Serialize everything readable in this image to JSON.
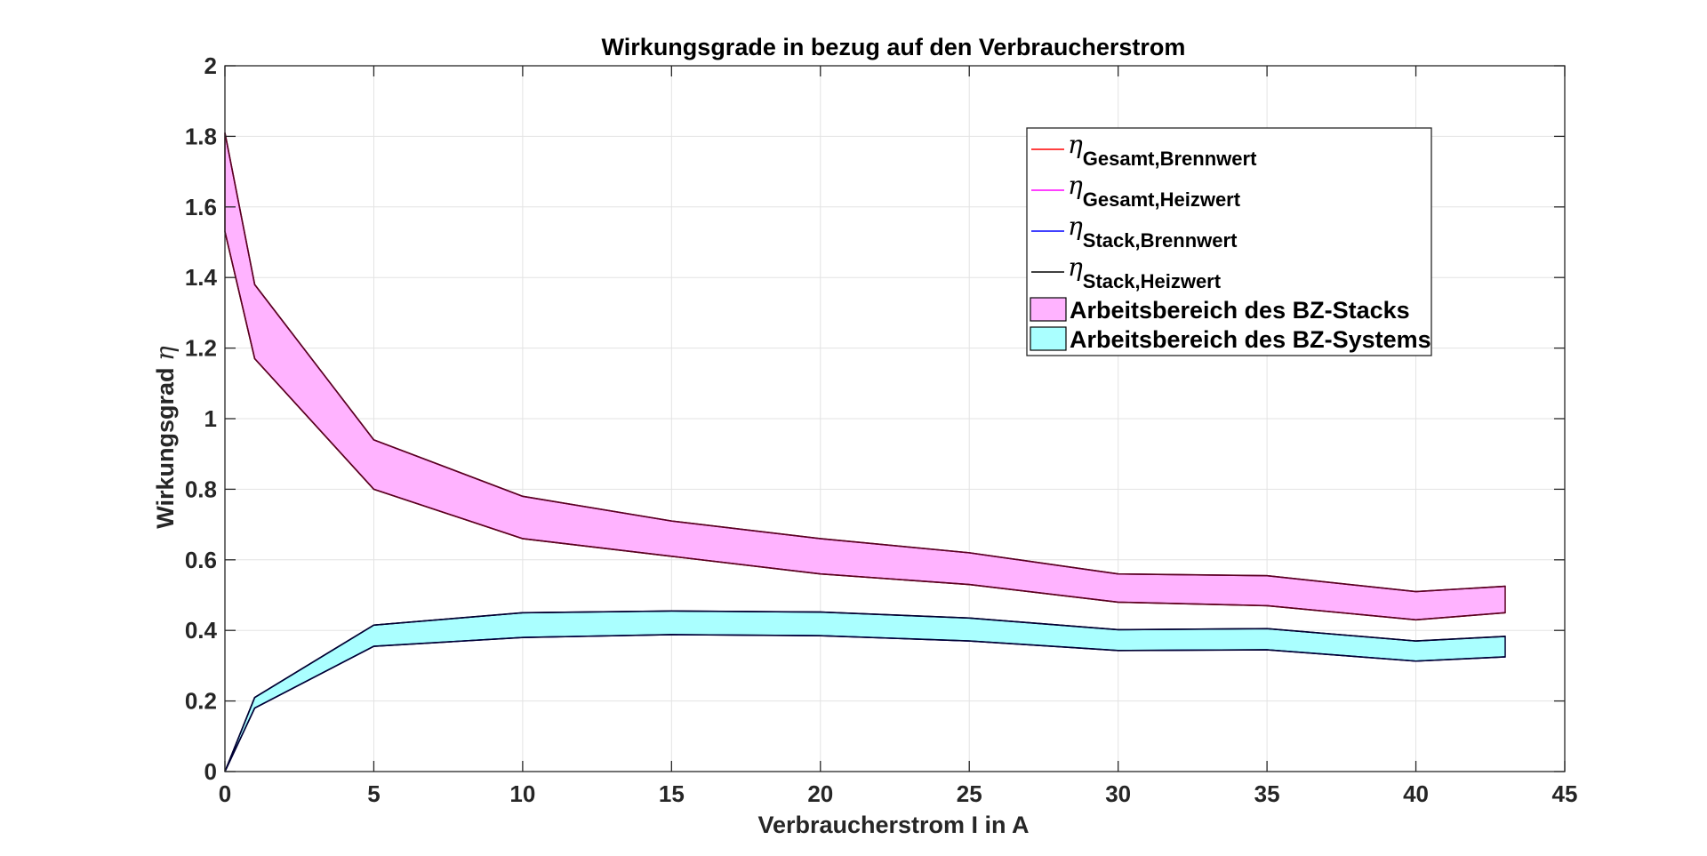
{
  "chart_data": {
    "type": "area",
    "title": "Wirkungsgrade in bezug auf den Verbraucherstrom",
    "xlabel": "Verbraucherstrom I in A",
    "ylabel_text": "Wirkungsgrad ",
    "ylabel_symbol": "η",
    "xlim": [
      0,
      45
    ],
    "ylim": [
      0,
      2
    ],
    "xticks": [
      "0",
      "5",
      "10",
      "15",
      "20",
      "25",
      "30",
      "35",
      "40",
      "45"
    ],
    "yticks": [
      "0",
      "0.2",
      "0.4",
      "0.6",
      "0.8",
      "1",
      "1.2",
      "1.4",
      "1.6",
      "1.8",
      "2"
    ],
    "grid": true,
    "legend_position": "top-right",
    "x": [
      0,
      1,
      5,
      10,
      15,
      20,
      25,
      30,
      35,
      40,
      43
    ],
    "series": [
      {
        "name_symbol": "η",
        "name_sub": "Gesamt,Brennwert",
        "color": "#ff0000",
        "kind": "line",
        "values": [
          1.53,
          1.17,
          0.8,
          0.66,
          0.61,
          0.56,
          0.53,
          0.48,
          0.47,
          0.43,
          0.45
        ]
      },
      {
        "name_symbol": "η",
        "name_sub": "Gesamt,Heizwert",
        "color": "#ff00ff",
        "kind": "line",
        "values": [
          1.81,
          1.38,
          0.94,
          0.78,
          0.71,
          0.66,
          0.62,
          0.56,
          0.555,
          0.51,
          0.525
        ]
      },
      {
        "name_symbol": "η",
        "name_sub": "Stack,Brennwert",
        "color": "#0000ff",
        "kind": "line",
        "values": [
          0.0,
          0.18,
          0.355,
          0.38,
          0.388,
          0.385,
          0.37,
          0.343,
          0.345,
          0.313,
          0.325
        ]
      },
      {
        "name_symbol": "η",
        "name_sub": "Stack,Heizwert",
        "color": "#000000",
        "kind": "line",
        "values": [
          0.0,
          0.21,
          0.415,
          0.45,
          0.455,
          0.452,
          0.435,
          0.402,
          0.405,
          0.37,
          0.383
        ]
      }
    ],
    "areas": [
      {
        "name": "Arbeitsbereich des BZ-Stacks",
        "color": "#ffb3ff",
        "edge": "#5a0020",
        "lower_series": 0,
        "upper_series": 1
      },
      {
        "name": "Arbeitsbereich des BZ-Systems",
        "color": "#aaffff",
        "edge": "#000033",
        "lower_series": 2,
        "upper_series": 3
      }
    ]
  }
}
